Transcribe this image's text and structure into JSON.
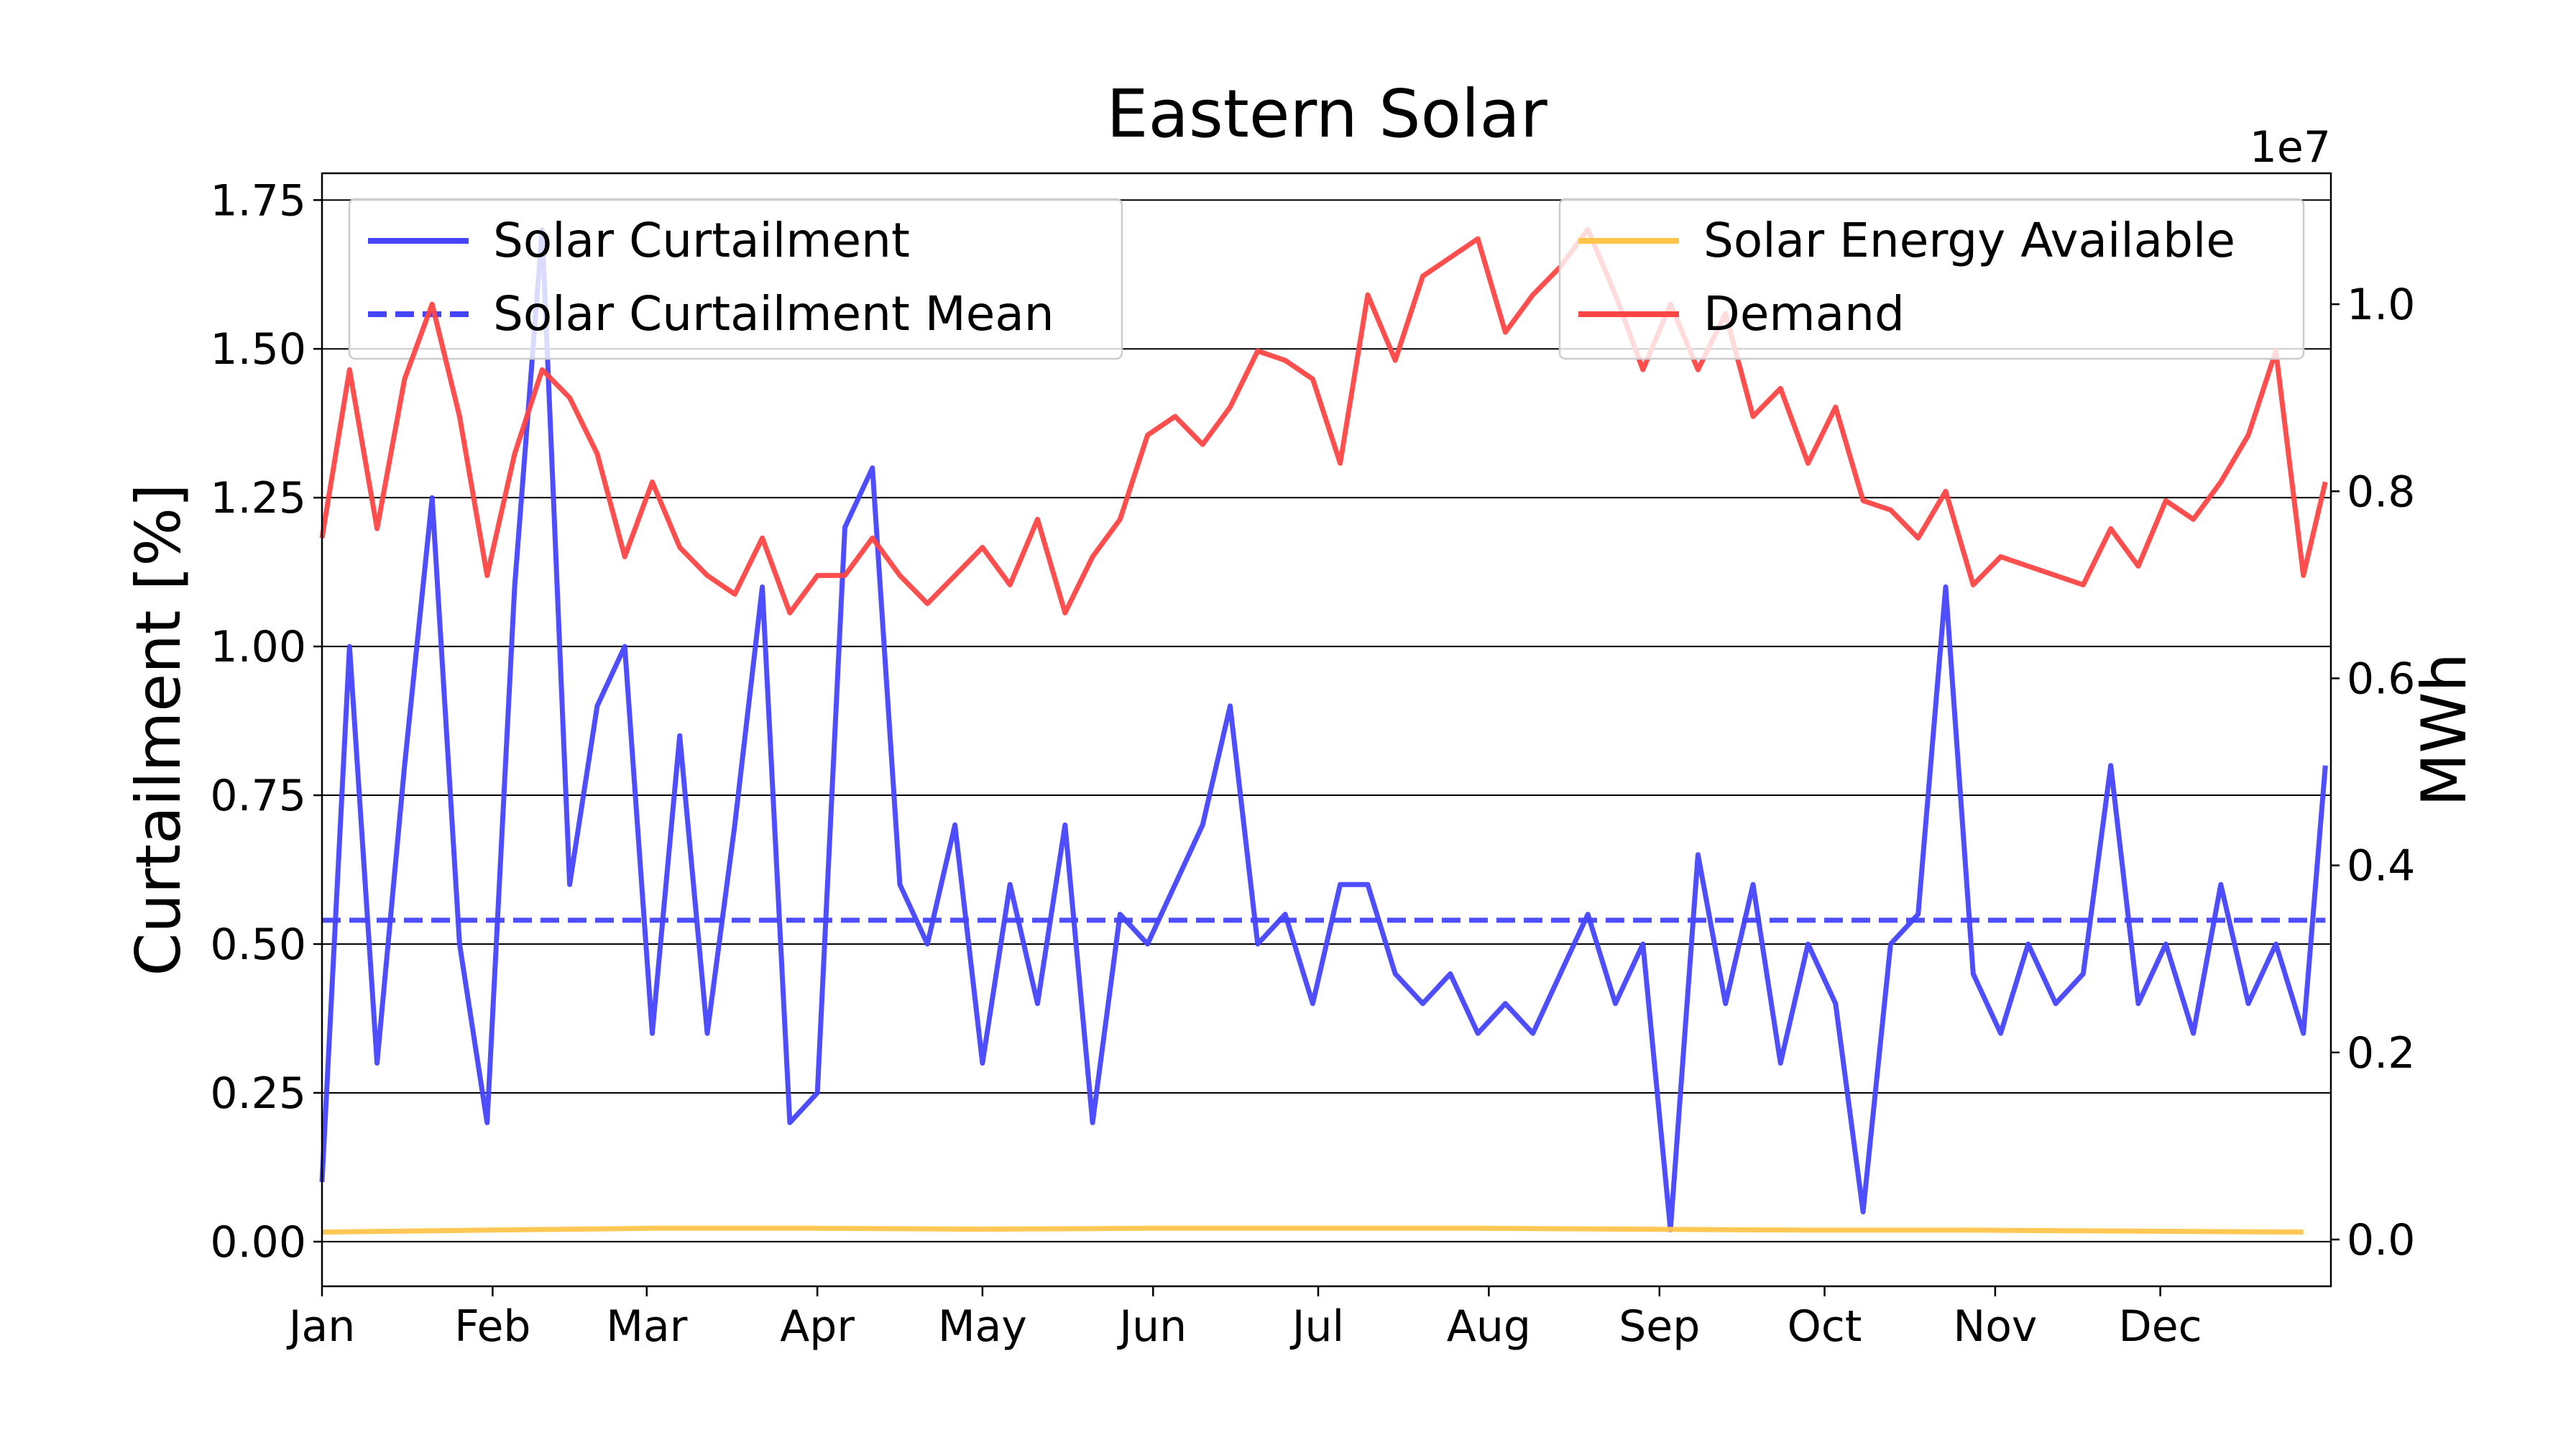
{
  "chart_data": {
    "type": "line",
    "title": "Eastern Solar",
    "ylabel": "Curtailment [%]",
    "y2label": "MWh",
    "y2_offset_label": "1e7",
    "xlim": [
      0,
      365
    ],
    "xticks": [
      {
        "value": 0,
        "label": "Jan"
      },
      {
        "value": 31,
        "label": "Feb"
      },
      {
        "value": 59,
        "label": "Mar"
      },
      {
        "value": 90,
        "label": "Apr"
      },
      {
        "value": 120,
        "label": "May"
      },
      {
        "value": 151,
        "label": "Jun"
      },
      {
        "value": 181,
        "label": "Jul"
      },
      {
        "value": 212,
        "label": "Aug"
      },
      {
        "value": 243,
        "label": "Sep"
      },
      {
        "value": 273,
        "label": "Oct"
      },
      {
        "value": 304,
        "label": "Nov"
      },
      {
        "value": 334,
        "label": "Dec"
      }
    ],
    "ylim": [
      -0.075,
      1.795
    ],
    "yticks": [
      {
        "value": 0,
        "label": "0.00"
      },
      {
        "value": 0.25,
        "label": "0.25"
      },
      {
        "value": 0.5,
        "label": "0.50"
      },
      {
        "value": 0.75,
        "label": "0.75"
      },
      {
        "value": 1,
        "label": "1.00"
      },
      {
        "value": 1.25,
        "label": "1.25"
      },
      {
        "value": 1.5,
        "label": "1.50"
      },
      {
        "value": 1.75,
        "label": "1.75"
      }
    ],
    "y2lim": [
      -0.05,
      1.14
    ],
    "y2ticks": [
      {
        "value": 0,
        "label": "0.0"
      },
      {
        "value": 0.2,
        "label": "0.2"
      },
      {
        "value": 0.4,
        "label": "0.4"
      },
      {
        "value": 0.6,
        "label": "0.6"
      },
      {
        "value": 0.8,
        "label": "0.8"
      },
      {
        "value": 1,
        "label": "1.0"
      }
    ],
    "grid": true,
    "legend": {
      "y": "upper left",
      "y2": "upper right"
    },
    "series": [
      {
        "name": "Solar Curtailment",
        "color": "#4545ff",
        "axis": "y",
        "dash": false,
        "x": [
          0,
          5,
          10,
          15,
          20,
          25,
          30,
          35,
          40,
          45,
          50,
          55,
          60,
          65,
          70,
          75,
          80,
          85,
          90,
          95,
          100,
          105,
          110,
          115,
          120,
          125,
          130,
          135,
          140,
          145,
          150,
          155,
          160,
          165,
          170,
          175,
          180,
          185,
          190,
          195,
          200,
          205,
          210,
          215,
          220,
          225,
          230,
          235,
          240,
          245,
          250,
          255,
          260,
          265,
          270,
          275,
          280,
          285,
          290,
          295,
          300,
          305,
          310,
          315,
          320,
          325,
          330,
          335,
          340,
          345,
          350,
          355,
          360,
          364
        ],
        "values": [
          0.1,
          1.0,
          0.3,
          0.8,
          1.25,
          0.5,
          0.2,
          1.1,
          1.7,
          0.6,
          0.9,
          1.0,
          0.35,
          0.85,
          0.35,
          0.7,
          1.1,
          0.2,
          0.25,
          1.2,
          1.3,
          0.6,
          0.5,
          0.7,
          0.3,
          0.6,
          0.4,
          0.7,
          0.2,
          0.55,
          0.5,
          0.6,
          0.7,
          0.9,
          0.5,
          0.55,
          0.4,
          0.6,
          0.6,
          0.45,
          0.4,
          0.45,
          0.35,
          0.4,
          0.35,
          0.45,
          0.55,
          0.4,
          0.5,
          0.02,
          0.65,
          0.4,
          0.6,
          0.3,
          0.5,
          0.4,
          0.05,
          0.5,
          0.55,
          1.1,
          0.45,
          0.35,
          0.5,
          0.4,
          0.45,
          0.8,
          0.4,
          0.5,
          0.35,
          0.6,
          0.4,
          0.5,
          0.35,
          0.8
        ]
      },
      {
        "name": "Solar Curtailment Mean",
        "color": "#4545ff",
        "axis": "y",
        "dash": true,
        "x": [
          0,
          364
        ],
        "values": [
          0.54,
          0.54
        ]
      },
      {
        "name": "Solar Energy Available",
        "color": "#ffc44a",
        "axis": "y2",
        "dash": false,
        "x": [
          0,
          30,
          60,
          90,
          120,
          150,
          180,
          210,
          240,
          270,
          300,
          330,
          360
        ],
        "values": [
          0.008,
          0.01,
          0.012,
          0.012,
          0.011,
          0.012,
          0.012,
          0.012,
          0.011,
          0.01,
          0.01,
          0.009,
          0.008
        ]
      },
      {
        "name": "Demand",
        "color": "#ff4545",
        "axis": "y2",
        "dash": false,
        "x": [
          0,
          5,
          10,
          15,
          20,
          25,
          30,
          35,
          40,
          45,
          50,
          55,
          60,
          65,
          70,
          75,
          80,
          85,
          90,
          95,
          100,
          105,
          110,
          115,
          120,
          125,
          130,
          135,
          140,
          145,
          150,
          155,
          160,
          165,
          170,
          175,
          180,
          185,
          190,
          195,
          200,
          205,
          210,
          215,
          220,
          225,
          230,
          235,
          240,
          245,
          250,
          255,
          260,
          265,
          270,
          275,
          280,
          285,
          290,
          295,
          300,
          305,
          310,
          315,
          320,
          325,
          330,
          335,
          340,
          345,
          350,
          355,
          360,
          364
        ],
        "values": [
          0.75,
          0.93,
          0.76,
          0.92,
          1.0,
          0.88,
          0.71,
          0.84,
          0.93,
          0.9,
          0.84,
          0.73,
          0.81,
          0.74,
          0.71,
          0.69,
          0.75,
          0.67,
          0.71,
          0.71,
          0.75,
          0.71,
          0.68,
          0.71,
          0.74,
          0.7,
          0.77,
          0.67,
          0.73,
          0.77,
          0.86,
          0.88,
          0.85,
          0.89,
          0.95,
          0.94,
          0.92,
          0.83,
          1.01,
          0.94,
          1.03,
          1.05,
          1.07,
          0.97,
          1.01,
          1.04,
          1.08,
          1.01,
          0.93,
          1.0,
          0.93,
          0.99,
          0.88,
          0.91,
          0.83,
          0.89,
          0.79,
          0.78,
          0.75,
          0.8,
          0.7,
          0.73,
          0.72,
          0.71,
          0.7,
          0.76,
          0.72,
          0.79,
          0.77,
          0.81,
          0.86,
          0.95,
          0.71,
          0.81
        ]
      }
    ]
  }
}
